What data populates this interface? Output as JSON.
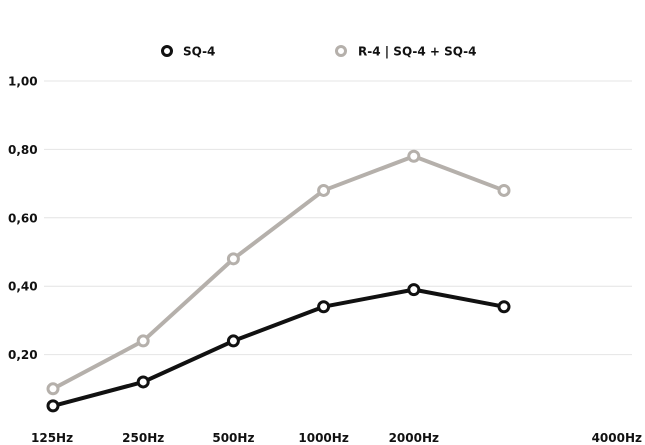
{
  "chart_data": {
    "type": "line",
    "categories": [
      "125Hz",
      "250Hz",
      "500Hz",
      "1000Hz",
      "2000Hz",
      "4000Hz"
    ],
    "series": [
      {
        "name": "SQ-4",
        "values": [
          0.05,
          0.12,
          0.24,
          0.34,
          0.39,
          0.34
        ],
        "color": "#111111"
      },
      {
        "name": "R-4 | SQ-4 + SQ-4",
        "values": [
          0.1,
          0.24,
          0.48,
          0.68,
          0.78,
          0.68
        ],
        "color": "#b5b0ab"
      }
    ],
    "y_ticks": [
      {
        "value": 1.0,
        "label": "1,00"
      },
      {
        "value": 0.8,
        "label": "0,80"
      },
      {
        "value": 0.6,
        "label": "0,60"
      },
      {
        "value": 0.4,
        "label": "0,40"
      },
      {
        "value": 0.2,
        "label": "0,20"
      }
    ],
    "ylim": [
      0,
      1.0
    ],
    "grid": true,
    "legend_position": "top-center"
  }
}
